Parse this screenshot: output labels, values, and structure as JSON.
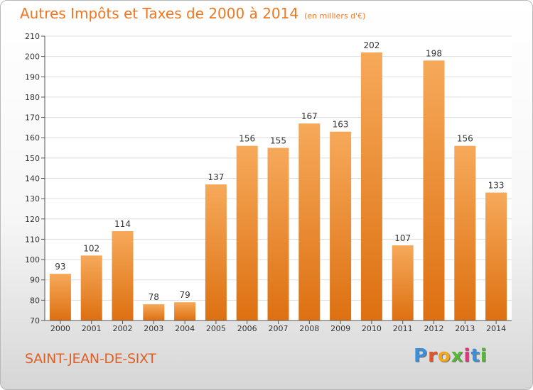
{
  "title": "Autres Impôts et Taxes de 2000 à 2014",
  "subtitle": "(en milliers d'€)",
  "commune": "SAINT-JEAN-DE-SIXT",
  "logo": {
    "text": "Proxiti",
    "colors": [
      "#3a8fd8",
      "#e2542a",
      "#f2a61c",
      "#58b43a",
      "#e0367e",
      "#3a8fd8",
      "#58b43a"
    ]
  },
  "colors": {
    "bar_top": "#f6a95a",
    "bar_bottom": "#dd7011",
    "title": "#ee7722",
    "commune": "#e06025",
    "grid": "#dddddd"
  },
  "chart_data": {
    "type": "bar",
    "title": "Autres Impôts et Taxes de 2000 à 2014",
    "subtitle": "(en milliers d'€)",
    "categories": [
      "2000",
      "2001",
      "2002",
      "2003",
      "2004",
      "2005",
      "2006",
      "2007",
      "2008",
      "2009",
      "2010",
      "2011",
      "2012",
      "2013",
      "2014"
    ],
    "values": [
      93,
      102,
      114,
      78,
      79,
      137,
      156,
      155,
      167,
      163,
      202,
      107,
      198,
      156,
      133
    ],
    "ylim": [
      70,
      210
    ],
    "yticks": [
      70,
      80,
      90,
      100,
      110,
      120,
      130,
      140,
      150,
      160,
      170,
      180,
      190,
      200,
      210
    ],
    "grid": true,
    "data_labels": true
  }
}
